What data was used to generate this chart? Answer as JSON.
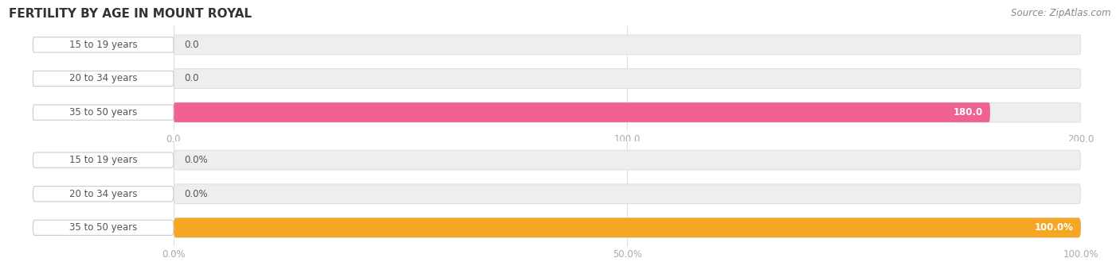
{
  "title": "FERTILITY BY AGE IN MOUNT ROYAL",
  "source_text": "Source: ZipAtlas.com",
  "top_chart": {
    "categories": [
      "15 to 19 years",
      "20 to 34 years",
      "35 to 50 years"
    ],
    "values": [
      0.0,
      0.0,
      180.0
    ],
    "bar_colors": [
      "#f48fb1",
      "#f48fb1",
      "#f06292"
    ],
    "track_color": "#eeeeee",
    "xlim": [
      0,
      200
    ],
    "xticks": [
      0.0,
      100.0,
      200.0
    ],
    "xtick_labels": [
      "0.0",
      "100.0",
      "200.0"
    ],
    "value_labels": [
      "0.0",
      "0.0",
      "180.0"
    ]
  },
  "bottom_chart": {
    "categories": [
      "15 to 19 years",
      "20 to 34 years",
      "35 to 50 years"
    ],
    "values": [
      0.0,
      0.0,
      100.0
    ],
    "bar_colors": [
      "#f5c992",
      "#f5c992",
      "#f5a623"
    ],
    "track_color": "#eeeeee",
    "xlim": [
      0,
      100
    ],
    "xticks": [
      0.0,
      50.0,
      100.0
    ],
    "xtick_labels": [
      "0.0%",
      "50.0%",
      "100.0%"
    ],
    "value_labels": [
      "0.0%",
      "0.0%",
      "100.0%"
    ]
  },
  "label_text_color": "#555555",
  "axis_label_color": "#aaaaaa",
  "background_color": "#ffffff",
  "bar_height": 0.58,
  "title_fontsize": 11,
  "label_fontsize": 8.5,
  "tick_fontsize": 8.5,
  "source_fontsize": 8.5
}
